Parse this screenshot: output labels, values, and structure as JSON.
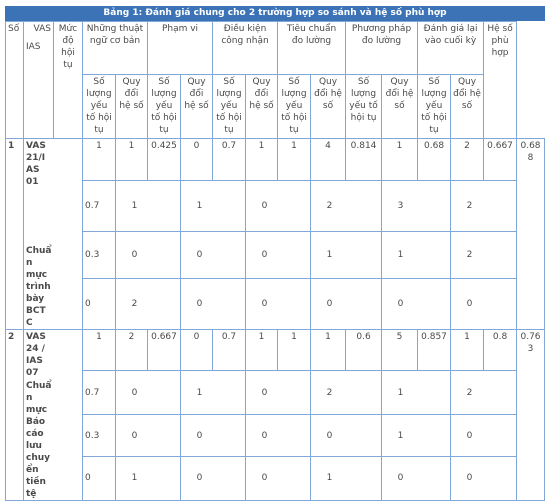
{
  "title": "Bảng 1: Đánh giá chung cho 2 trường hợp so sánh và hệ số phù hợp",
  "headers": {
    "so": "Số",
    "vas": "VAS",
    "ias": "IAS",
    "muc_do": "Mức độ hội tụ",
    "nhung_thuat_ngu": "Những thuật ngữ cơ bản",
    "pham_vi": "Phạm vi",
    "dieu_kien": "Điều kiện công nhận",
    "tieu_chuan": "Tiêu chuẩn đo lường",
    "phuong_phap": "Phương pháp đo lường",
    "danh_gia_lai": "Đánh giá lại vào cuối kỳ",
    "he_so": "Hệ số phù hợp",
    "so_luong": "Số lượng yếu tố hội tụ",
    "quy_doi": "Quy đổi hệ số"
  },
  "groups": [
    {
      "no": "1",
      "name_line1": "VAS 21/IAS 01",
      "name_line2": "Chuẩn mực trình bày BCTC",
      "top": {
        "muc": "1",
        "v": [
          "1",
          "0.425",
          "0",
          "0.7",
          "1",
          "1",
          "4",
          "0.814",
          "1",
          "0.68",
          "2",
          "0.667"
        ],
        "hs": "0.688"
      },
      "subs": [
        {
          "muc": "0.7",
          "v": [
            "1",
            "1",
            "0",
            "2",
            "3",
            "2"
          ]
        },
        {
          "muc": "0.3",
          "v": [
            "0",
            "0",
            "0",
            "1",
            "1",
            "2"
          ]
        },
        {
          "muc": "0",
          "v": [
            "2",
            "0",
            "0",
            "0",
            "0",
            "0"
          ]
        }
      ]
    },
    {
      "no": "2",
      "name_line1": "VAS 24 / IAS 07",
      "name_line2": "Chuẩn mực Báo cáo lưu chuyển tiền tệ",
      "top": {
        "muc": "1",
        "v": [
          "2",
          "0.667",
          "0",
          "0.7",
          "1",
          "1",
          "1",
          "0.6",
          "5",
          "0.857",
          "1",
          "0.8"
        ],
        "hs": "0.763"
      },
      "subs": [
        {
          "muc": "0.7",
          "v": [
            "0",
            "1",
            "0",
            "2",
            "1",
            "2"
          ]
        },
        {
          "muc": "0.3",
          "v": [
            "0",
            "0",
            "0",
            "0",
            "1",
            "0"
          ]
        },
        {
          "muc": "0",
          "v": [
            "1",
            "0",
            "0",
            "1",
            "0",
            "0"
          ]
        }
      ]
    }
  ]
}
